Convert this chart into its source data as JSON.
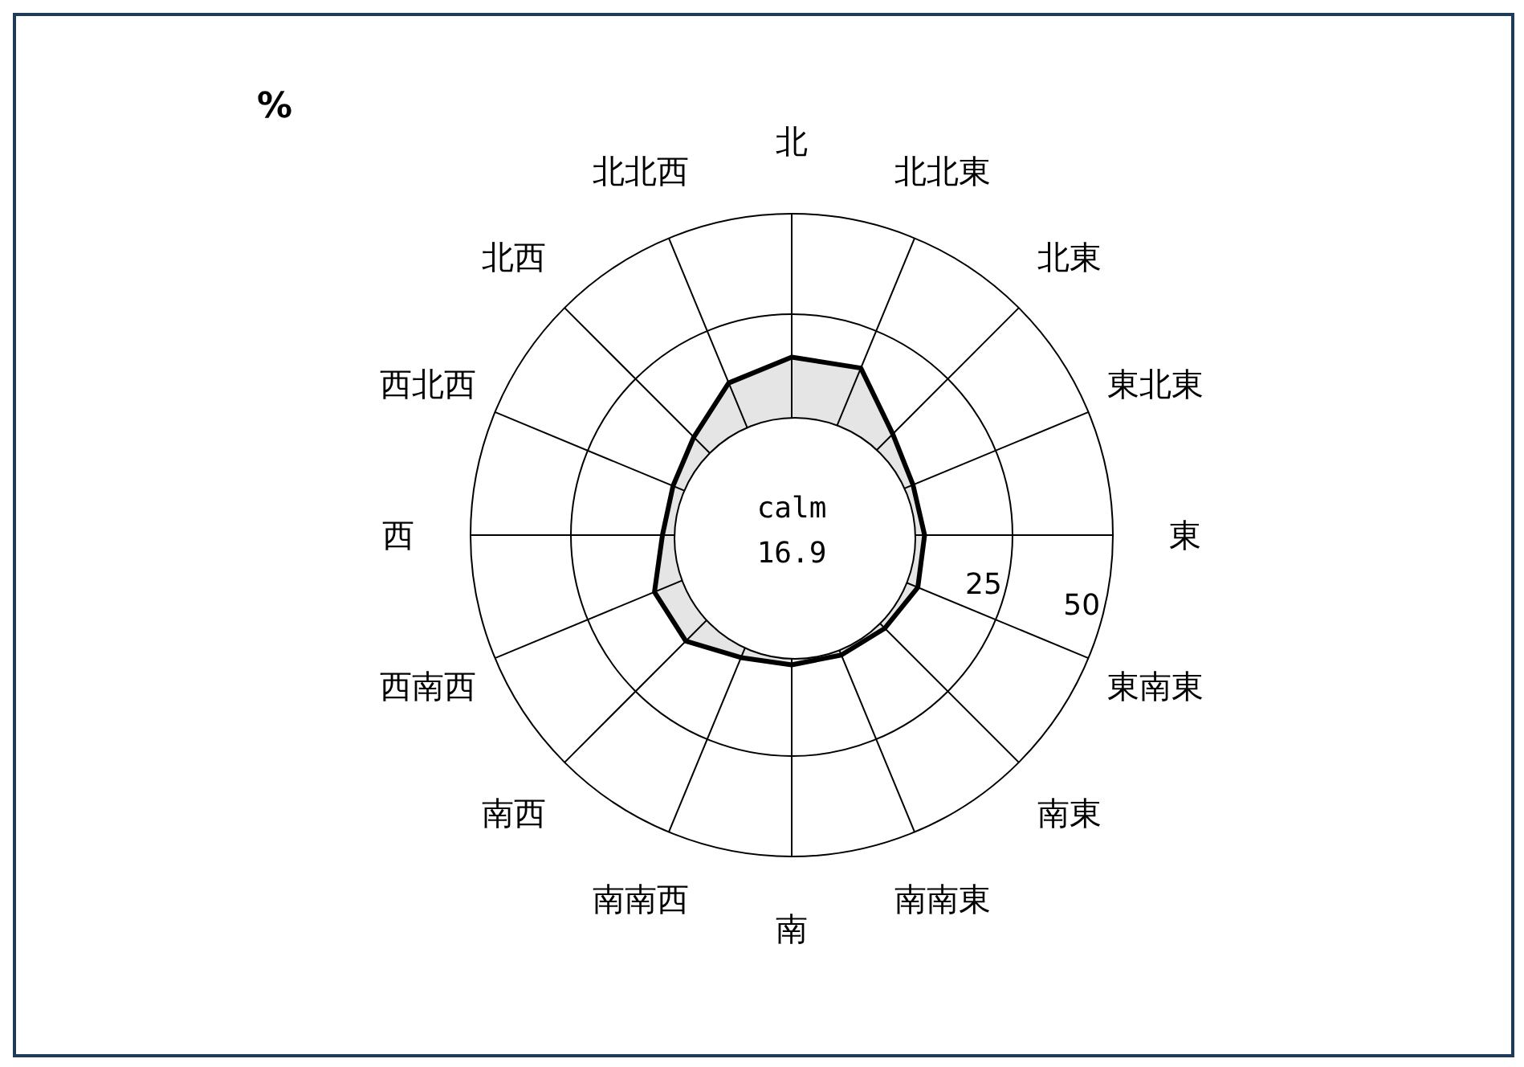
{
  "chart_data": {
    "type": "radar",
    "ylabel": "%",
    "categories": [
      "北",
      "北北東",
      "北東",
      "東北東",
      "東",
      "東南東",
      "南東",
      "南南東",
      "南",
      "南南西",
      "南西",
      "西南西",
      "西",
      "西北西",
      "北西",
      "北北西"
    ],
    "series": [
      {
        "color": "#000000",
        "values": [
          14.3,
          15.0,
          5.6,
          2.7,
          3.1,
          4.0,
          2.8,
          2.3,
          2.3,
          3.0,
          7.3,
          7.0,
          2.2,
          2.0,
          4.5,
          11.0
        ]
      }
    ],
    "ylim": [
      -30,
      50
    ],
    "yticks": [
      25,
      50
    ],
    "grid": true,
    "legend": false,
    "annotations": [
      "calm",
      "16.9"
    ]
  }
}
